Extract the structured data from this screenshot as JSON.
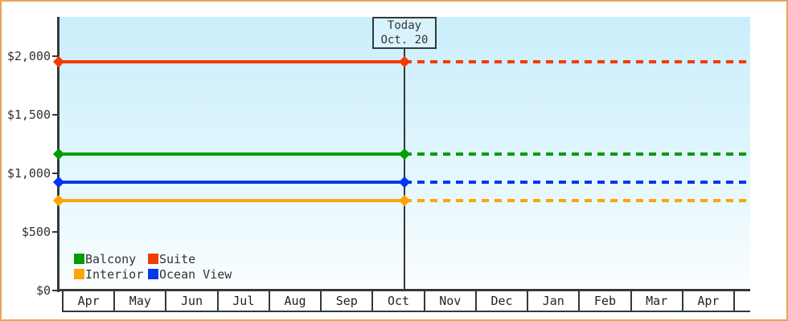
{
  "chart_data": {
    "type": "line",
    "title": "",
    "xlabel": "",
    "ylabel": "",
    "categories": [
      "Apr",
      "May",
      "Jun",
      "Jul",
      "Aug",
      "Sep",
      "Oct",
      "Nov",
      "Dec",
      "Jan",
      "Feb",
      "Mar",
      "Apr"
    ],
    "trailing_empty_cell": true,
    "series": [
      {
        "name": "Balcony",
        "color": "#009c00",
        "value": 1165
      },
      {
        "name": "Suite",
        "color": "#f43b00",
        "value": 1950
      },
      {
        "name": "Interior",
        "color": "#ffa405",
        "value": 765
      },
      {
        "name": "Ocean View",
        "color": "#0435f2",
        "value": 925
      }
    ],
    "y_ticks": [
      {
        "value": 0,
        "label": "$0"
      },
      {
        "value": 500,
        "label": "$500"
      },
      {
        "value": 1000,
        "label": "$1,000"
      },
      {
        "value": 1500,
        "label": "$1,500"
      },
      {
        "value": 2000,
        "label": "$2,000"
      }
    ],
    "ylim": [
      0,
      2335
    ],
    "grid": false,
    "legend_position": "inside-bottom-left",
    "legend_order": [
      "Balcony",
      "Suite",
      "Interior",
      "Ocean View"
    ],
    "today": {
      "label_line1": "Today",
      "label_line2": "Oct. 20",
      "x_fraction": 0.5
    },
    "style": {
      "solid_before_today": true,
      "dashed_after_today": true,
      "marker_shape": "diamond"
    }
  },
  "colors": {
    "frame_border": "#e9a35b",
    "axis": "#33383d",
    "plot_bg_top": "#caeefb",
    "plot_bg_bottom": "#fbfeff",
    "today_box_bg": "#d8f3fd",
    "text": "#333333"
  }
}
